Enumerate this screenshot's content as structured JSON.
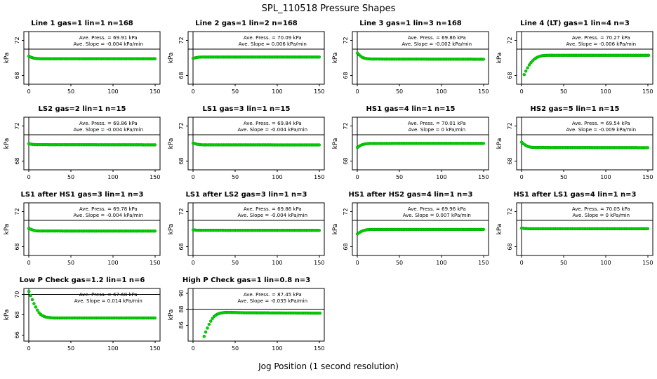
{
  "page": {
    "title": "SPL_110518  Pressure Shapes",
    "xlabel": "Jog Position (1 second resolution)"
  },
  "chart_data": {
    "type": "scatter",
    "title": "SPL_110518  Pressure Shapes",
    "xlabel": "Jog Position (1 second resolution)",
    "ylabel": "kPa",
    "marker_color": "#00d500",
    "marker_edge": "#009900",
    "axis_color": "#000000",
    "xlim": [
      -6,
      156
    ],
    "xticks": [
      0,
      50,
      100,
      150
    ],
    "panels": [
      {
        "title": "Line 1 gas=1 lin=1 n=168",
        "ave_press_kpa": 69.91,
        "ave_slope_kpa_per_min": -0.004,
        "press_label": "Ave. Press. = 69.91 kPa",
        "slope_label": "Ave. Slope = -0.004 kPa/min",
        "ylim": [
          67,
          73
        ],
        "yticks": [
          68,
          72
        ],
        "ref_y": 71,
        "points": [
          [
            0,
            70.2
          ],
          [
            3,
            70.05
          ],
          [
            6,
            69.97
          ],
          [
            10,
            69.92
          ],
          [
            15,
            69.9
          ],
          [
            150,
            69.9
          ]
        ]
      },
      {
        "title": "Line 2 gas=1 lin=2 n=168",
        "ave_press_kpa": 70.09,
        "ave_slope_kpa_per_min": 0.006,
        "press_label": "Ave. Press. = 70.09 kPa",
        "slope_label": "Ave. Slope = 0.006 kPa/min",
        "ylim": [
          67,
          73
        ],
        "yticks": [
          68,
          72
        ],
        "ref_y": 71,
        "points": [
          [
            0,
            69.95
          ],
          [
            3,
            70.02
          ],
          [
            6,
            70.07
          ],
          [
            10,
            70.1
          ],
          [
            150,
            70.1
          ]
        ]
      },
      {
        "title": "Line 3 gas=1 lin=3 n=168",
        "ave_press_kpa": 69.86,
        "ave_slope_kpa_per_min": -0.002,
        "press_label": "Ave. Press. = 69.86 kPa",
        "slope_label": "Ave. Slope = -0.002 kPa/min",
        "ylim": [
          67,
          73
        ],
        "yticks": [
          68,
          72
        ],
        "ref_y": 71,
        "points": [
          [
            0,
            70.55
          ],
          [
            3,
            70.25
          ],
          [
            6,
            70.05
          ],
          [
            9,
            69.95
          ],
          [
            12,
            69.9
          ],
          [
            16,
            69.87
          ],
          [
            150,
            69.85
          ]
        ]
      },
      {
        "title": "Line 4 (LT) gas=1 lin=4 n=3",
        "ave_press_kpa": 70.27,
        "ave_slope_kpa_per_min": -0.006,
        "press_label": "Ave. Press. = 70.27 kPa",
        "slope_label": "Ave. Slope = -0.006 kPa/min",
        "ylim": [
          67,
          73
        ],
        "yticks": [
          68,
          72
        ],
        "ref_y": 71,
        "points": [
          [
            3,
            68.1
          ],
          [
            6,
            68.7
          ],
          [
            9,
            69.2
          ],
          [
            12,
            69.6
          ],
          [
            15,
            69.85
          ],
          [
            18,
            70.05
          ],
          [
            22,
            70.2
          ],
          [
            26,
            70.28
          ],
          [
            32,
            70.3
          ],
          [
            150,
            70.3
          ]
        ]
      },
      {
        "title": "LS2 gas=2 lin=1 n=15",
        "ave_press_kpa": 69.86,
        "ave_slope_kpa_per_min": -0.004,
        "press_label": "Ave. Press. = 69.86 kPa",
        "slope_label": "Ave. Slope = -0.004 kPa/min",
        "ylim": [
          67,
          73
        ],
        "yticks": [
          68,
          72
        ],
        "ref_y": 71,
        "points": [
          [
            0,
            69.98
          ],
          [
            4,
            69.9
          ],
          [
            8,
            69.87
          ],
          [
            150,
            69.85
          ]
        ]
      },
      {
        "title": "LS1 gas=3 lin=1 n=15",
        "ave_press_kpa": 69.84,
        "ave_slope_kpa_per_min": -0.004,
        "press_label": "Ave. Press. = 69.84 kPa",
        "slope_label": "Ave. Slope = -0.004 kPa/min",
        "ylim": [
          67,
          73
        ],
        "yticks": [
          68,
          72
        ],
        "ref_y": 71,
        "points": [
          [
            0,
            70.05
          ],
          [
            4,
            69.93
          ],
          [
            8,
            69.87
          ],
          [
            12,
            69.85
          ],
          [
            150,
            69.84
          ]
        ]
      },
      {
        "title": "HS1 gas=4 lin=1 n=15",
        "ave_press_kpa": 70.01,
        "ave_slope_kpa_per_min": 0,
        "press_label": "Ave. Press. = 70.01 kPa",
        "slope_label": "Ave. Slope = 0 kPa/min",
        "ylim": [
          67,
          73
        ],
        "yticks": [
          68,
          72
        ],
        "ref_y": 71,
        "points": [
          [
            0,
            69.55
          ],
          [
            3,
            69.75
          ],
          [
            6,
            69.88
          ],
          [
            10,
            69.97
          ],
          [
            15,
            70.01
          ],
          [
            150,
            70.02
          ]
        ]
      },
      {
        "title": "HS2 gas=5 lin=1 n=15",
        "ave_press_kpa": 69.54,
        "ave_slope_kpa_per_min": -0.009,
        "press_label": "Ave. Press. = 69.54 kPa",
        "slope_label": "Ave. Slope = -0.009 kPa/min",
        "ylim": [
          67,
          73
        ],
        "yticks": [
          68,
          72
        ],
        "ref_y": 71,
        "points": [
          [
            0,
            70.15
          ],
          [
            3,
            69.9
          ],
          [
            6,
            69.72
          ],
          [
            9,
            69.62
          ],
          [
            12,
            69.57
          ],
          [
            16,
            69.55
          ],
          [
            150,
            69.53
          ]
        ]
      },
      {
        "title": "LS1 after HS1 gas=3 lin=1 n=3",
        "ave_press_kpa": 69.78,
        "ave_slope_kpa_per_min": -0.004,
        "press_label": "Ave. Press. = 69.78 kPa",
        "slope_label": "Ave. Slope = -0.004 kPa/min",
        "ylim": [
          67,
          73
        ],
        "yticks": [
          68,
          72
        ],
        "ref_y": 71,
        "points": [
          [
            0,
            70.1
          ],
          [
            3,
            69.95
          ],
          [
            6,
            69.86
          ],
          [
            9,
            69.81
          ],
          [
            12,
            69.79
          ],
          [
            150,
            69.78
          ]
        ]
      },
      {
        "title": "LS1 after LS2 gas=3 lin=1 n=3",
        "ave_press_kpa": 69.86,
        "ave_slope_kpa_per_min": -0.004,
        "press_label": "Ave. Press. = 69.86 kPa",
        "slope_label": "Ave. Slope = -0.004 kPa/min",
        "ylim": [
          67,
          73
        ],
        "yticks": [
          68,
          72
        ],
        "ref_y": 71,
        "points": [
          [
            0,
            69.92
          ],
          [
            4,
            69.88
          ],
          [
            8,
            69.87
          ],
          [
            150,
            69.86
          ]
        ]
      },
      {
        "title": "HS1 after HS2 gas=4 lin=1 n=3",
        "ave_press_kpa": 69.96,
        "ave_slope_kpa_per_min": 0.007,
        "press_label": "Ave. Press. = 69.96 kPa",
        "slope_label": "Ave. Slope = 0.007 kPa/min",
        "ylim": [
          67,
          73
        ],
        "yticks": [
          68,
          72
        ],
        "ref_y": 71,
        "points": [
          [
            0,
            69.45
          ],
          [
            3,
            69.65
          ],
          [
            6,
            69.8
          ],
          [
            9,
            69.89
          ],
          [
            12,
            69.94
          ],
          [
            16,
            69.97
          ],
          [
            150,
            69.97
          ]
        ]
      },
      {
        "title": "HS1 after LS1 gas=4 lin=1 n=3",
        "ave_press_kpa": 70.05,
        "ave_slope_kpa_per_min": 0,
        "press_label": "Ave. Press. = 70.05 kPa",
        "slope_label": "Ave. Slope = 0 kPa/min",
        "ylim": [
          67,
          73
        ],
        "yticks": [
          68,
          72
        ],
        "ref_y": 71,
        "points": [
          [
            0,
            70.12
          ],
          [
            4,
            70.07
          ],
          [
            8,
            70.05
          ],
          [
            150,
            70.05
          ]
        ]
      },
      {
        "title": "Low P Check gas=1.2 lin=1 n=6",
        "ave_press_kpa": 67.68,
        "ave_slope_kpa_per_min": 0.014,
        "press_label": "Ave. Press. = 67.68 kPa",
        "slope_label": "Ave. Slope = 0.014 kPa/min",
        "ylim": [
          65.4,
          70.6
        ],
        "yticks": [
          66,
          68,
          70
        ],
        "ref_y": 70,
        "points": [
          [
            0,
            70.3
          ],
          [
            3,
            69.7
          ],
          [
            6,
            69.1
          ],
          [
            9,
            68.6
          ],
          [
            12,
            68.2
          ],
          [
            15,
            67.95
          ],
          [
            20,
            67.78
          ],
          [
            25,
            67.72
          ],
          [
            30,
            67.68
          ],
          [
            150,
            67.68
          ]
        ]
      },
      {
        "title": "High P Check gas=1 lin=0.8 n=3",
        "ave_press_kpa": 87.45,
        "ave_slope_kpa_per_min": -0.035,
        "press_label": "Ave. Press. = 87.45 kPa",
        "slope_label": "Ave. Slope = -0.035 kPa/min",
        "ylim": [
          84,
          90.6
        ],
        "yticks": [
          86,
          88,
          90
        ],
        "ref_y": 88,
        "points": [
          [
            13,
            84.6
          ],
          [
            16,
            85.4
          ],
          [
            19,
            86.1
          ],
          [
            22,
            86.7
          ],
          [
            25,
            87.1
          ],
          [
            28,
            87.35
          ],
          [
            32,
            87.5
          ],
          [
            38,
            87.6
          ],
          [
            45,
            87.6
          ],
          [
            60,
            87.55
          ],
          [
            150,
            87.5
          ]
        ]
      }
    ]
  }
}
